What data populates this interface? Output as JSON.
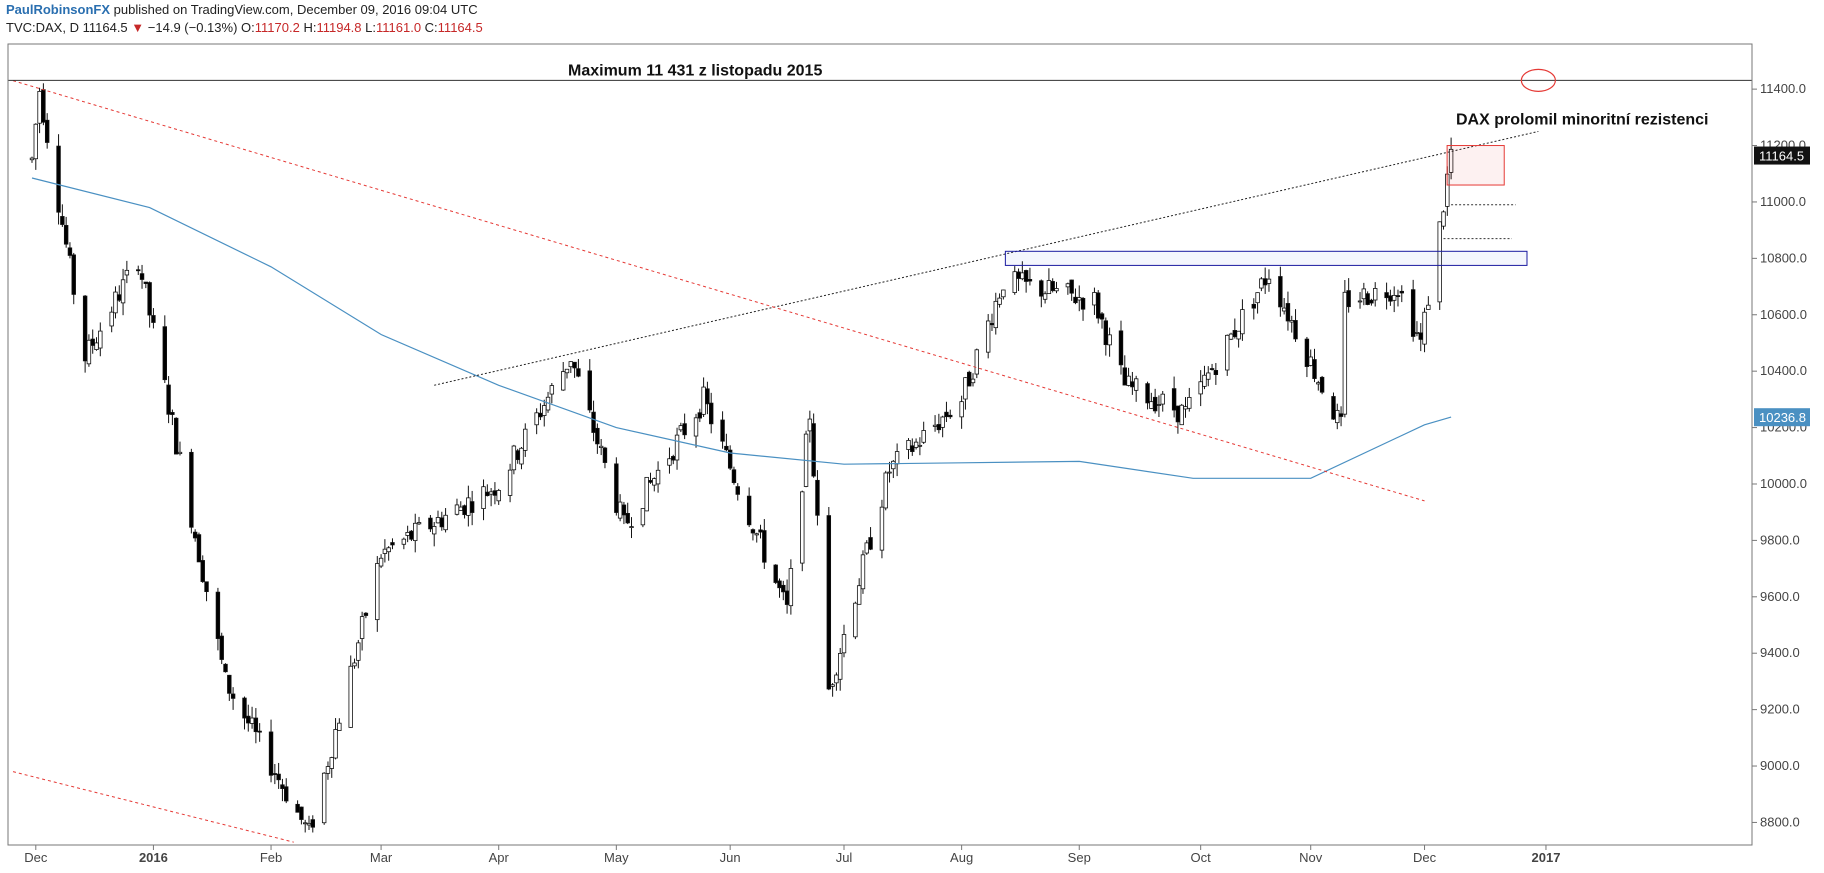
{
  "header": {
    "author": "PaulRobinsonFX",
    "published": "published on TradingView.com, December 09, 2016 09:04 UTC",
    "symbol": "TVC:DAX, D",
    "last": "11164.5",
    "change_arrow": "▼",
    "change": "−14.9 (−0.13%)",
    "o_label": "O:",
    "o_value": "11170.2",
    "h_label": "H:",
    "h_value": "11194.8",
    "l_label": "L:",
    "l_value": "11161.0",
    "c_label": "C:",
    "c_value": "11164.5"
  },
  "chart_data": {
    "type": "candlestick",
    "ylim": [
      8720,
      11560
    ],
    "y_ticks": [
      "11400.0",
      "11200.0",
      "11000.0",
      "10800.0",
      "10600.0",
      "10400.0",
      "10200.0",
      "10000.0",
      "9800.0",
      "9600.0",
      "9400.0",
      "9200.0",
      "9000.0",
      "8800.0"
    ],
    "x_ticks": [
      "Dec",
      "2016",
      "Feb",
      "Mar",
      "Apr",
      "May",
      "Jun",
      "Jul",
      "Aug",
      "Sep",
      "Oct",
      "Nov",
      "Dec",
      "2017"
    ],
    "annotations": {
      "max_label": "Maximum 11 431 z listopadu 2015",
      "breakout_label": "DAX prolomil minoritní rezistenci"
    },
    "price_tags": {
      "last_price": "11164.5",
      "ma_value": "10236.8"
    },
    "colors": {
      "up_candle": "#ffffff",
      "down_candle": "#000000",
      "moving_average": "#4a90c2",
      "trend_red": "#e53935",
      "resistance_box": "#1a1aa0"
    },
    "levels": {
      "maximum": 11431,
      "resistance_box": [
        10775,
        10825
      ]
    },
    "anchors": [
      [
        "2015-11-30",
        11150
      ],
      [
        "2015-12-02",
        11400
      ],
      [
        "2015-12-14",
        10450
      ],
      [
        "2015-12-28",
        10800
      ],
      [
        "2016-01-20",
        9300
      ],
      [
        "2016-02-11",
        8760
      ],
      [
        "2016-03-01",
        9750
      ],
      [
        "2016-04-01",
        10000
      ],
      [
        "2016-04-20",
        10450
      ],
      [
        "2016-05-04",
        9850
      ],
      [
        "2016-05-25",
        10300
      ],
      [
        "2016-06-16",
        9550
      ],
      [
        "2016-06-22",
        10250
      ],
      [
        "2016-06-27",
        9270
      ],
      [
        "2016-07-13",
        10050
      ],
      [
        "2016-08-01",
        10300
      ],
      [
        "2016-08-12",
        10720
      ],
      [
        "2016-09-05",
        10650
      ],
      [
        "2016-09-13",
        10350
      ],
      [
        "2016-09-29",
        10250
      ],
      [
        "2016-10-21",
        10750
      ],
      [
        "2016-11-09",
        10200
      ],
      [
        "2016-11-10",
        10650
      ],
      [
        "2016-11-24",
        10700
      ],
      [
        "2016-11-30",
        10500
      ],
      [
        "2016-12-06",
        10990
      ],
      [
        "2016-12-08",
        11180
      ]
    ],
    "moving_average_points": [
      [
        "2015-11-30",
        11085
      ],
      [
        "2015-12-31",
        10980
      ],
      [
        "2016-02-01",
        10770
      ],
      [
        "2016-03-01",
        10530
      ],
      [
        "2016-04-01",
        10350
      ],
      [
        "2016-05-02",
        10200
      ],
      [
        "2016-06-01",
        10110
      ],
      [
        "2016-07-01",
        10070
      ],
      [
        "2016-08-01",
        10075
      ],
      [
        "2016-09-01",
        10080
      ],
      [
        "2016-10-01",
        10020
      ],
      [
        "2016-11-01",
        10020
      ],
      [
        "2016-12-01",
        10210
      ],
      [
        "2016-12-08",
        10237
      ]
    ],
    "trendlines": [
      {
        "style": "dotted-black",
        "from": [
          "2016-03-15",
          10350
        ],
        "to": [
          "2016-12-31",
          11250
        ]
      },
      {
        "style": "dashed-red",
        "from": [
          "2015-11-25",
          11430
        ],
        "to": [
          "2016-12-01",
          9940
        ]
      },
      {
        "style": "dashed-red",
        "from": [
          "2015-11-25",
          8980
        ],
        "to": [
          "2016-02-07",
          8730
        ]
      }
    ]
  }
}
